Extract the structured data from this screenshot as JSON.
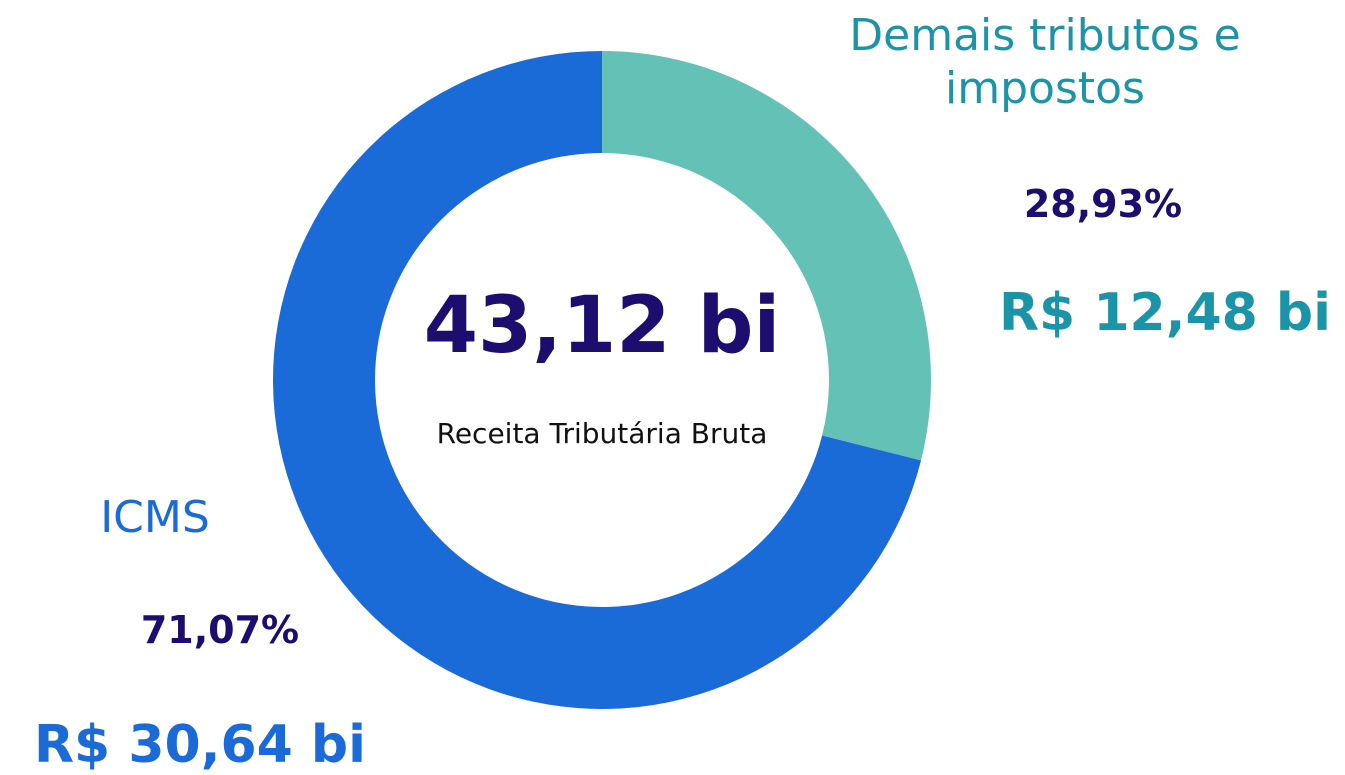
{
  "chart_data": {
    "type": "pie",
    "categories": [
      "Demais tributos e impostos",
      "ICMS"
    ],
    "values": [
      28.93,
      71.07
    ],
    "value_labels": [
      "28,93%",
      "71,07%"
    ],
    "amount_labels": [
      "R$ 12,48 bi",
      "R$ 30,64 bi"
    ],
    "colors": [
      "#63c1b5",
      "#1a6ad8"
    ],
    "center_title": "43,12 bi",
    "center_subtitle": "Receita Tributária Bruta"
  }
}
